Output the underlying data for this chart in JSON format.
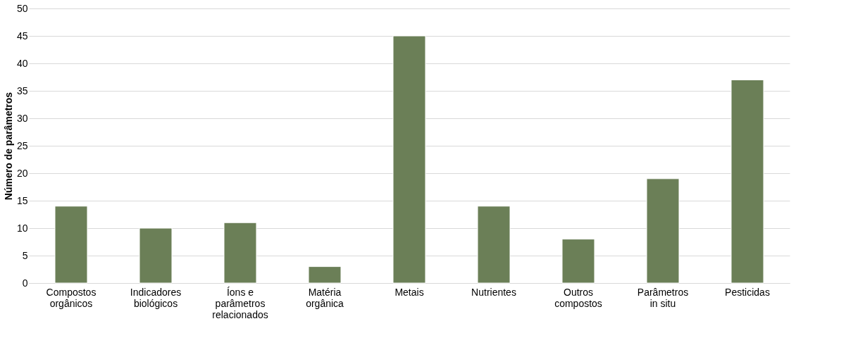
{
  "chart_data": {
    "type": "bar",
    "ylabel": "Número de parâmetros",
    "categories": [
      "Compostos\norgânicos",
      "Indicadores\nbiológicos",
      "Íons e\nparâmetros\nrelacionados",
      "Matéria\norgânica",
      "Metais",
      "Nutrientes",
      "Outros\ncompostos",
      "Parâmetros\nin situ",
      "Pesticidas"
    ],
    "values": [
      14,
      10,
      11,
      3,
      45,
      14,
      8,
      19,
      37
    ],
    "color": "#6b7f57",
    "ylim": [
      0,
      50
    ],
    "yticks": [
      0,
      5,
      10,
      15,
      20,
      25,
      30,
      35,
      40,
      45,
      50
    ],
    "grid": "y"
  }
}
